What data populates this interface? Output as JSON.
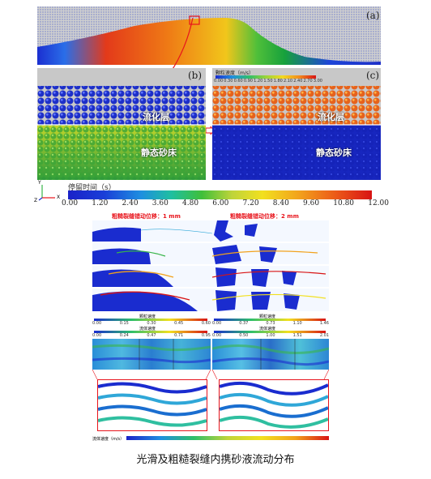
{
  "panels": {
    "a_label": "(a)",
    "b_label": "(b)",
    "c_label": "(c)"
  },
  "layers": {
    "fluidized": "流化层",
    "static_bed": "静态砂床"
  },
  "velocity_legend": {
    "title": "颗粒速度（m/s）",
    "ticks": [
      "0.00",
      "0.30",
      "0.60",
      "0.90",
      "1.20",
      "1.50",
      "1.80",
      "2.10",
      "2.40",
      "2.70",
      "3.00"
    ]
  },
  "residence_legend": {
    "title": "停留时间（s）",
    "ticks": [
      "0.00",
      "1.20",
      "2.40",
      "3.60",
      "4.80",
      "6.00",
      "7.20",
      "8.40",
      "9.60",
      "10.80",
      "12.00"
    ]
  },
  "axes": {
    "y": "Y",
    "x": "X",
    "z": "Z"
  },
  "rough": {
    "left_title": "粗糙裂缝错动位移：1 mm",
    "right_title": "粗糙裂缝错动位移：2 mm",
    "left_particle_legend": "颗粒速度",
    "right_particle_legend": "颗粒速度",
    "left_particle_ticks": [
      "0.00",
      "0.15",
      "0.30",
      "0.45",
      "0.60"
    ],
    "right_particle_ticks": [
      "0.00",
      "0.37",
      "0.73",
      "1.10",
      "1.46"
    ],
    "left_fluid_legend": "流体速度",
    "right_fluid_legend": "流体速度",
    "left_fluid_ticks": [
      "0.00",
      "0.24",
      "0.47",
      "0.71",
      "0.95"
    ],
    "right_fluid_ticks": [
      "0.00",
      "0.50",
      "1.00",
      "1.51",
      "2.01"
    ],
    "bottom_legend": "流体速度（m/s）"
  },
  "caption": "光滑及粗糙裂缝内携砂液流动分布",
  "colors": {
    "jet_blue": "#1a2ccf",
    "jet_red": "#d81414",
    "title_red": "#e8141c",
    "accent_green": "#39b54a"
  }
}
